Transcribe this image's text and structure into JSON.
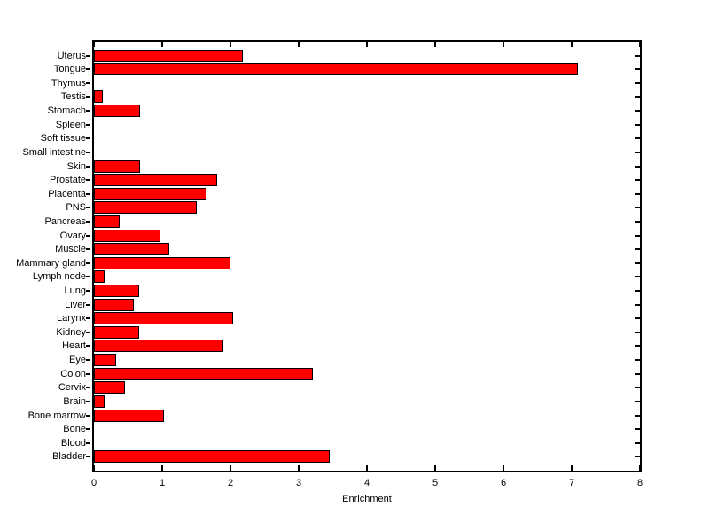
{
  "figure": {
    "background": "#ffffff"
  },
  "chart_data": {
    "type": "bar",
    "orientation": "horizontal",
    "title": "",
    "xlabel": "Enrichment",
    "ylabel": "",
    "xlim": [
      0,
      8
    ],
    "xticks": [
      0,
      1,
      2,
      3,
      4,
      5,
      6,
      7,
      8
    ],
    "xtick_labels": [
      "0",
      "1",
      "2",
      "3",
      "4",
      "5",
      "6",
      "7",
      "8"
    ],
    "grid": false,
    "legend": null,
    "bar_color": "#ff0000",
    "bar_edge_color": "#000000",
    "axis_color": "#000000",
    "categories_top_to_bottom": [
      "Uterus",
      "Tongue",
      "Thymus",
      "Testis",
      "Stomach",
      "Spleen",
      "Soft tissue",
      "Small intestine",
      "Skin",
      "Prostate",
      "Placenta",
      "PNS",
      "Pancreas",
      "Ovary",
      "Muscle",
      "Mammary gland",
      "Lymph node",
      "Lung",
      "Liver",
      "Larynx",
      "Kidney",
      "Heart",
      "Eye",
      "Colon",
      "Cervix",
      "Brain",
      "Bone marrow",
      "Bone",
      "Blood",
      "Bladder"
    ],
    "values": [
      2.18,
      7.09,
      0,
      0.13,
      0.68,
      0,
      0,
      0,
      0.67,
      1.81,
      1.65,
      1.5,
      0.38,
      0.97,
      1.11,
      2.0,
      0.15,
      0.66,
      0.58,
      2.04,
      0.66,
      1.9,
      0.33,
      3.21,
      0.45,
      0.16,
      1.03,
      0,
      0,
      3.45
    ]
  }
}
